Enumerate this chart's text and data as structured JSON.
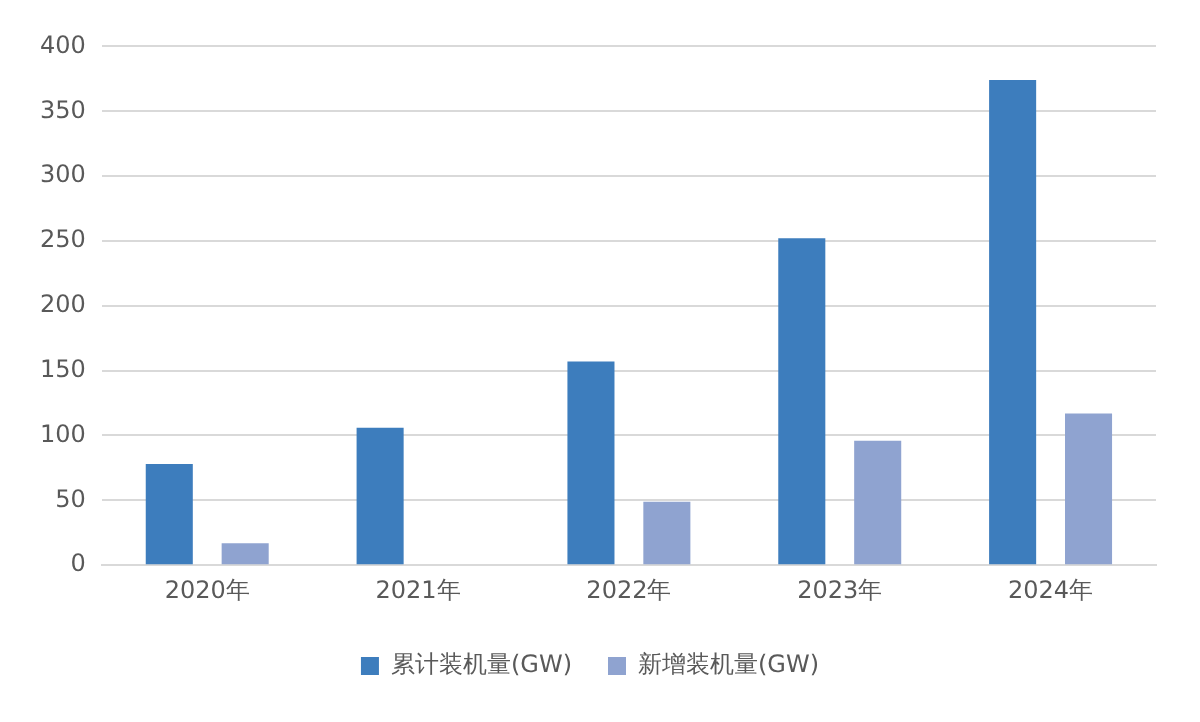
{
  "chart_data": {
    "type": "bar",
    "categories": [
      "2020年",
      "2021年",
      "2022年",
      "2023年",
      "2024年"
    ],
    "series": [
      {
        "name": "累计装机量(GW)",
        "color": "#3d7dbd",
        "values": [
          78,
          106,
          157,
          252,
          374
        ]
      },
      {
        "name": "新增装机量(GW)",
        "color": "#8fa3d0",
        "values": [
          17,
          null,
          49,
          96,
          117
        ]
      }
    ],
    "ylim": [
      0,
      400
    ],
    "yticks": [
      0,
      50,
      100,
      150,
      200,
      250,
      300,
      350,
      400
    ],
    "grid": "y",
    "legend": "bottom"
  }
}
